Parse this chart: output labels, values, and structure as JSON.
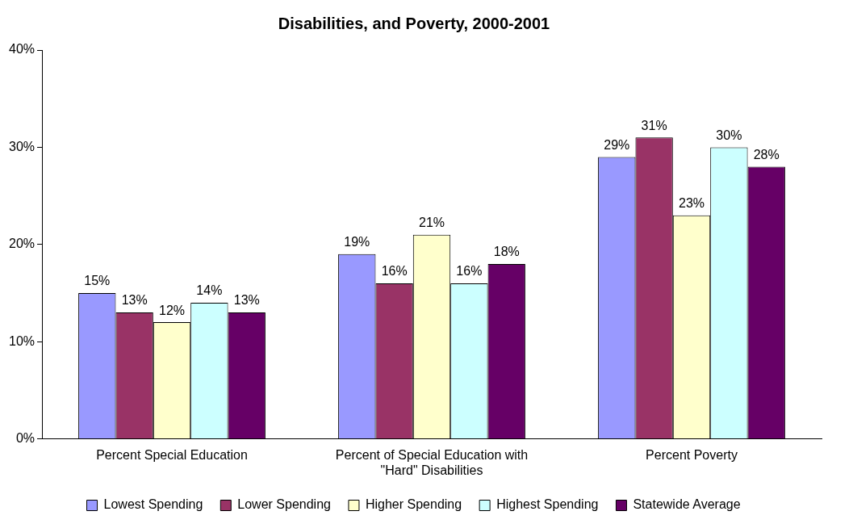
{
  "chart_data": {
    "type": "bar",
    "title": "Disabilities, and Poverty, 2000-2001",
    "categories": [
      "Percent Special Education",
      "Percent of Special Education with \"Hard\" Disabilities",
      "Percent Poverty"
    ],
    "series": [
      {
        "name": "Lowest Spending",
        "color": "#9999ff",
        "values": [
          15,
          19,
          29
        ],
        "value_labels": [
          "15%",
          "19%",
          "29%"
        ]
      },
      {
        "name": "Lower Spending",
        "color": "#993366",
        "values": [
          13,
          16,
          31
        ],
        "value_labels": [
          "13%",
          "16%",
          "31%"
        ]
      },
      {
        "name": "Higher Spending",
        "color": "#ffffcc",
        "values": [
          12,
          21,
          23
        ],
        "value_labels": [
          "12%",
          "21%",
          "23%"
        ]
      },
      {
        "name": "Highest Spending",
        "color": "#ccffff",
        "values": [
          14,
          16,
          30
        ],
        "value_labels": [
          "14%",
          "16%",
          "30%"
        ]
      },
      {
        "name": "Statewide Average",
        "color": "#660066",
        "values": [
          13,
          18,
          28
        ],
        "value_labels": [
          "13%",
          "18%",
          "28%"
        ]
      }
    ],
    "ylim": [
      0,
      40
    ],
    "yticks": [
      {
        "value": 0,
        "label": "0%"
      },
      {
        "value": 10,
        "label": "10%"
      },
      {
        "value": 20,
        "label": "20%"
      },
      {
        "value": 30,
        "label": "30%"
      },
      {
        "value": 40,
        "label": "40%"
      }
    ],
    "grid": false,
    "legend": "bottom"
  }
}
